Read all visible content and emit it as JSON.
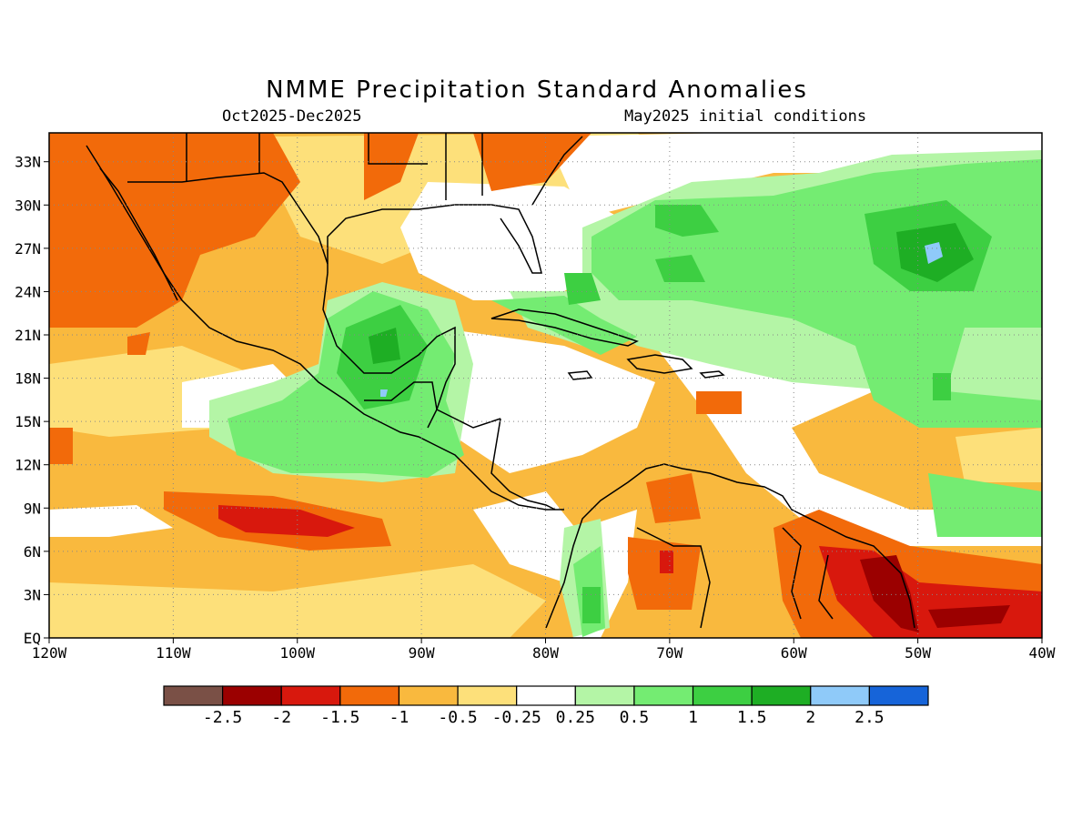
{
  "title": "NMME Precipitation Standard Anomalies",
  "subtitle_left": "Oct2025-Dec2025",
  "subtitle_right": "May2025 initial conditions",
  "lon_ticks": [
    "120W",
    "110W",
    "100W",
    "90W",
    "80W",
    "70W",
    "60W",
    "50W",
    "40W"
  ],
  "lat_ticks": [
    "EQ",
    "3N",
    "6N",
    "9N",
    "12N",
    "15N",
    "18N",
    "21N",
    "24N",
    "27N",
    "30N",
    "33N"
  ],
  "colorbar": {
    "colors": [
      "#7a5046",
      "#9b0000",
      "#d8180d",
      "#f26a0a",
      "#f9b93e",
      "#fde07a",
      "#ffffff",
      "#b4f5a6",
      "#74ec72",
      "#3dcf42",
      "#1eae24",
      "#8fcaf9",
      "#1664d9"
    ],
    "labels": [
      "-2.5",
      "-2",
      "-1.5",
      "-1",
      "-0.5",
      "-0.25",
      "0.25",
      "0.5",
      "1",
      "1.5",
      "2",
      "2.5"
    ]
  },
  "colors": {
    "dry_base": "#f9b93e",
    "moderate_dry": "#f26a0a",
    "strong_dry": "#d8180d",
    "very_dry": "#9b0000",
    "neutral": "#ffffff",
    "light_wet": "#b4f5a6",
    "wet": "#74ec72",
    "very_wet": "#3dcf42",
    "strong_wet": "#1eae24",
    "extreme_wet": "#8fcaf9"
  }
}
